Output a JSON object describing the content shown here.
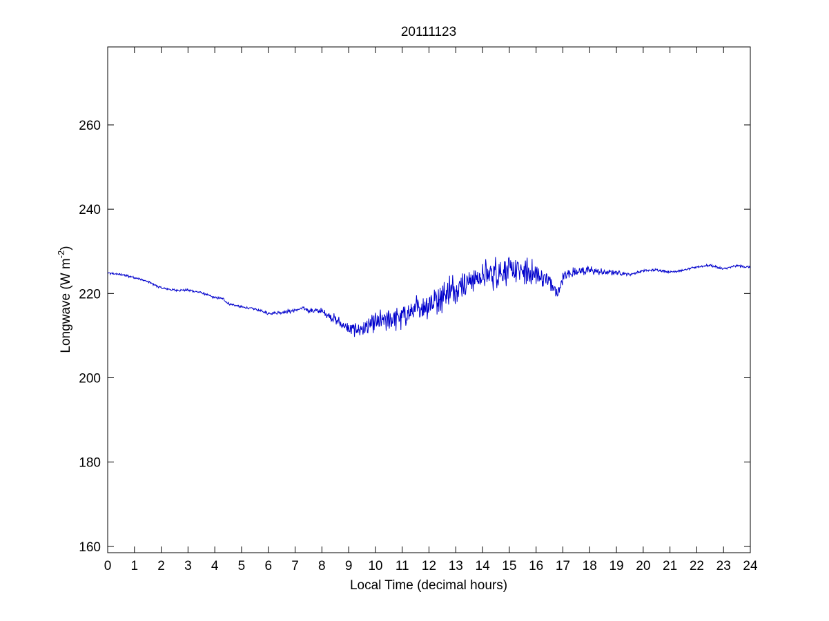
{
  "chart_data": {
    "type": "line",
    "title": "20111123",
    "xlabel": "Local Time (decimal hours)",
    "ylabel": "Longwave (W m",
    "ylabel_exponent": "-2",
    "ylabel_close": ")",
    "xlim": [
      0,
      24
    ],
    "ylim": [
      158.5,
      278.5
    ],
    "x_ticks": [
      "0",
      "1",
      "2",
      "3",
      "4",
      "5",
      "6",
      "7",
      "8",
      "9",
      "10",
      "11",
      "12",
      "13",
      "14",
      "15",
      "16",
      "17",
      "18",
      "19",
      "20",
      "21",
      "22",
      "23",
      "24"
    ],
    "y_ticks": [
      "160",
      "180",
      "200",
      "220",
      "240",
      "260"
    ],
    "grid": false,
    "line_color": "#0000cc",
    "series": [
      {
        "x": [
          0,
          0.5,
          1,
          1.5,
          2,
          2.5,
          3,
          3.5,
          4,
          4.3,
          4.5,
          5,
          5.5,
          6,
          6.5,
          7,
          7.3,
          7.5,
          8,
          8.5,
          9,
          9.5,
          10,
          10.5,
          11,
          11.5,
          12,
          12.5,
          13,
          13.5,
          14,
          14.5,
          15,
          15.5,
          16,
          16.5,
          16.8,
          17,
          17.5,
          18,
          18.5,
          19,
          19.5,
          20,
          20.5,
          21,
          21.5,
          22,
          22.5,
          23,
          23.5,
          24
        ],
        "y": [
          224.8,
          224.5,
          223.8,
          222.8,
          221.3,
          220.8,
          220.8,
          220.2,
          219.0,
          218.8,
          217.6,
          216.8,
          216.3,
          215.3,
          215.5,
          216.0,
          216.5,
          216.0,
          215.8,
          213.8,
          211.5,
          211.5,
          213.0,
          213.8,
          214.5,
          216.0,
          217.5,
          219.5,
          221.5,
          223.0,
          224.0,
          225.0,
          225.5,
          225.2,
          224.5,
          223.0,
          219.5,
          224.0,
          225.3,
          225.5,
          225.0,
          225.0,
          224.5,
          225.4,
          225.6,
          225.1,
          225.5,
          226.3,
          226.7,
          225.8,
          226.6,
          226.2
        ],
        "noise": [
          0.3,
          0.3,
          0.3,
          0.3,
          0.3,
          0.3,
          0.3,
          0.3,
          0.3,
          0.3,
          0.3,
          0.3,
          0.3,
          0.4,
          0.4,
          0.5,
          0.6,
          0.6,
          0.8,
          1.2,
          1.5,
          2.0,
          2.5,
          3.0,
          3.0,
          3.5,
          3.5,
          4.0,
          4.0,
          3.5,
          3.5,
          4.0,
          3.5,
          3.5,
          3.0,
          2.5,
          2.0,
          1.5,
          1.2,
          1.0,
          0.8,
          0.6,
          0.3,
          0.3,
          0.3,
          0.3,
          0.3,
          0.3,
          0.3,
          0.3,
          0.3,
          0.3
        ]
      }
    ]
  }
}
